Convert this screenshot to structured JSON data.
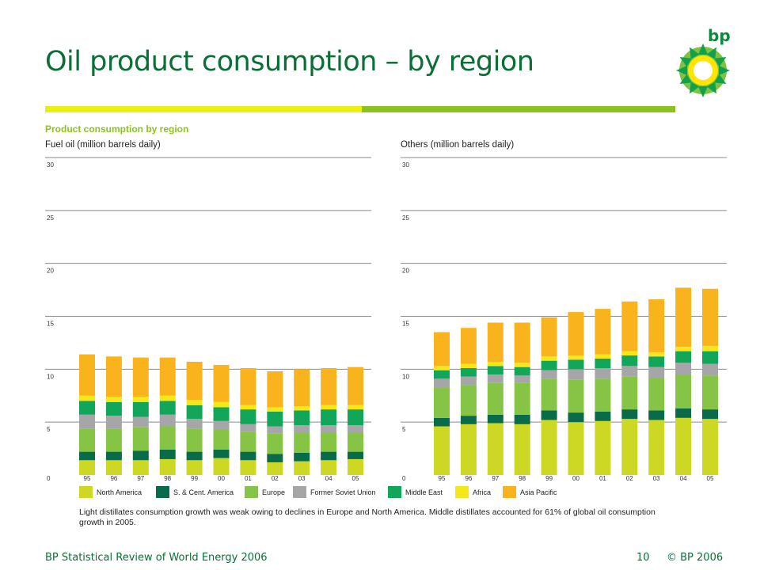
{
  "title": "Oil product consumption – by region",
  "logo_text": "bp",
  "section_title": "Product consumption by region",
  "caption": "Light distillates consumption growth was weak owing to declines in Europe and North America. Middle distillates accounted for 61% of global oil consumption growth in 2005.",
  "footer": {
    "left": "BP Statistical Review of World Energy 2006",
    "page": "10",
    "copyright": "© BP 2006"
  },
  "colors": {
    "North America": "#cdd824",
    "S. & Cent. America": "#0a6b4a",
    "Europe": "#86c446",
    "Former Soviet Union": "#a6a6a8",
    "Middle East": "#12a65a",
    "Africa": "#f6e818",
    "Asia Pacific": "#f9b31c"
  },
  "chart_data": [
    {
      "type": "bar",
      "stacked": true,
      "title": "Fuel oil (million barrels daily)",
      "categories": [
        "95",
        "96",
        "97",
        "98",
        "99",
        "00",
        "01",
        "02",
        "03",
        "04",
        "05"
      ],
      "ylim": [
        0,
        30
      ],
      "yticks": [
        "0",
        "5",
        "10",
        "15",
        "20",
        "25",
        "30"
      ],
      "grid": true,
      "series": [
        {
          "name": "North America",
          "values": [
            1.4,
            1.4,
            1.4,
            1.5,
            1.4,
            1.6,
            1.4,
            1.2,
            1.3,
            1.4,
            1.5
          ]
        },
        {
          "name": "S. & Cent. America",
          "values": [
            0.8,
            0.8,
            0.9,
            0.9,
            0.8,
            0.8,
            0.8,
            0.8,
            0.8,
            0.8,
            0.7
          ]
        },
        {
          "name": "Europe",
          "values": [
            2.2,
            2.2,
            2.2,
            2.2,
            2.2,
            1.9,
            1.9,
            1.9,
            1.9,
            1.8,
            1.8
          ]
        },
        {
          "name": "Former Soviet Union",
          "values": [
            1.3,
            1.2,
            1.0,
            1.1,
            0.9,
            0.8,
            0.7,
            0.7,
            0.7,
            0.7,
            0.7
          ]
        },
        {
          "name": "Middle East",
          "values": [
            1.3,
            1.3,
            1.4,
            1.3,
            1.3,
            1.3,
            1.4,
            1.4,
            1.4,
            1.5,
            1.5
          ]
        },
        {
          "name": "Africa",
          "values": [
            0.5,
            0.5,
            0.5,
            0.5,
            0.5,
            0.5,
            0.4,
            0.4,
            0.4,
            0.4,
            0.4
          ]
        },
        {
          "name": "Asia Pacific",
          "values": [
            3.9,
            3.8,
            3.7,
            3.6,
            3.6,
            3.5,
            3.5,
            3.4,
            3.5,
            3.5,
            3.6
          ]
        }
      ]
    },
    {
      "type": "bar",
      "stacked": true,
      "title": "Others (million barrels daily)",
      "categories": [
        "95",
        "96",
        "97",
        "98",
        "99",
        "00",
        "01",
        "02",
        "03",
        "04",
        "05"
      ],
      "ylim": [
        0,
        30
      ],
      "yticks": [
        "0",
        "5",
        "10",
        "15",
        "20",
        "25",
        "30"
      ],
      "grid": true,
      "series": [
        {
          "name": "North America",
          "values": [
            4.6,
            4.8,
            4.9,
            4.8,
            5.2,
            5.0,
            5.1,
            5.3,
            5.2,
            5.4,
            5.3
          ]
        },
        {
          "name": "S. & Cent. America",
          "values": [
            0.8,
            0.8,
            0.8,
            0.9,
            0.9,
            0.9,
            0.9,
            0.9,
            0.9,
            0.9,
            0.9
          ]
        },
        {
          "name": "Europe",
          "values": [
            2.9,
            2.9,
            3.0,
            3.0,
            3.0,
            3.1,
            3.1,
            3.1,
            3.1,
            3.2,
            3.2
          ]
        },
        {
          "name": "Former Soviet Union",
          "values": [
            0.8,
            0.8,
            0.8,
            0.7,
            0.8,
            1.0,
            1.0,
            1.0,
            1.0,
            1.1,
            1.1
          ]
        },
        {
          "name": "Middle East",
          "values": [
            0.8,
            0.8,
            0.8,
            0.8,
            0.9,
            0.9,
            0.9,
            1.0,
            1.0,
            1.1,
            1.2
          ]
        },
        {
          "name": "Africa",
          "values": [
            0.4,
            0.4,
            0.4,
            0.4,
            0.4,
            0.4,
            0.4,
            0.4,
            0.4,
            0.4,
            0.5
          ]
        },
        {
          "name": "Asia Pacific",
          "values": [
            3.2,
            3.4,
            3.7,
            3.8,
            3.7,
            4.1,
            4.3,
            4.7,
            5.0,
            5.6,
            5.4
          ]
        }
      ]
    }
  ],
  "legend": [
    {
      "label": "North America",
      "color": "#cdd824"
    },
    {
      "label": "S. & Cent. America",
      "color": "#0a6b4a"
    },
    {
      "label": "Europe",
      "color": "#86c446"
    },
    {
      "label": "Former Soviet Union",
      "color": "#a6a6a8"
    },
    {
      "label": "Middle East",
      "color": "#12a65a"
    },
    {
      "label": "Africa",
      "color": "#f6e818"
    },
    {
      "label": "Asia Pacific",
      "color": "#f9b31c"
    }
  ]
}
